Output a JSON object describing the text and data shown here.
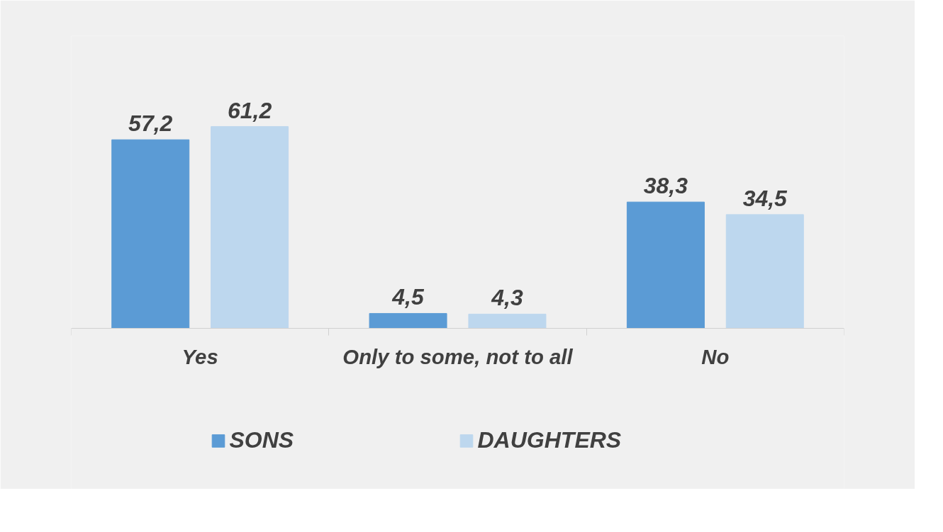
{
  "chart_data": {
    "type": "bar",
    "categories": [
      "Yes",
      "Only to some, not to all",
      "No"
    ],
    "series": [
      {
        "name": "SONS",
        "color": "#5b9bd5",
        "values": [
          57.2,
          4.5,
          38.3
        ],
        "value_labels": [
          "57,2",
          "4,5",
          "38,3"
        ]
      },
      {
        "name": "DAUGHTERS",
        "color": "#bdd7ee",
        "values": [
          61.2,
          4.3,
          34.5
        ],
        "value_labels": [
          "61,2",
          "4,3",
          "34,5"
        ]
      }
    ],
    "legend": "bottom",
    "grid": false
  }
}
